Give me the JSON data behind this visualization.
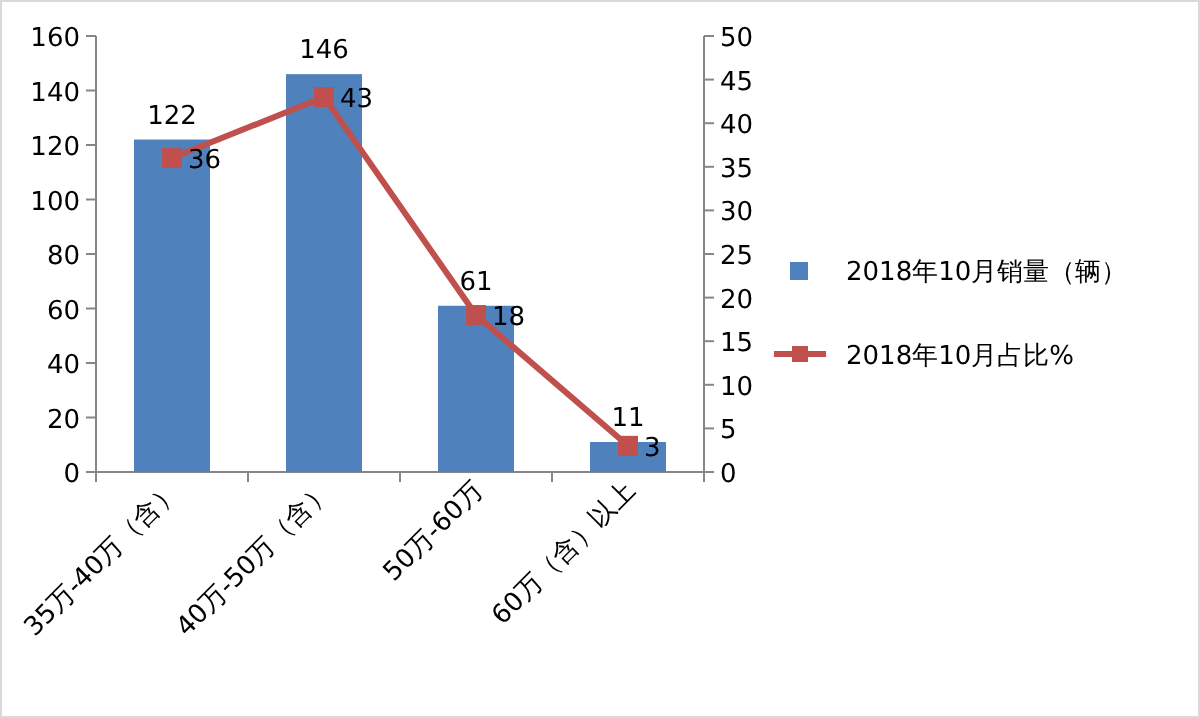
{
  "chart_data": {
    "type": "bar",
    "categories": [
      "35万-40万（含）",
      "40万-50万（含）",
      "50万-60万",
      "60万（含）以上"
    ],
    "series": [
      {
        "name": "2018年10月销量（辆）",
        "color": "#4f81bd",
        "values": [
          122,
          146,
          61,
          11
        ]
      },
      {
        "name": "2018年10月占比%",
        "type": "line",
        "axis": "y2",
        "color": "#c0504d",
        "marker": "square",
        "values": [
          36,
          43,
          18,
          3
        ]
      }
    ],
    "ylim": [
      0,
      160
    ],
    "yticks": [
      0,
      20,
      40,
      60,
      80,
      100,
      120,
      140,
      160
    ],
    "y2lim": [
      0,
      50
    ],
    "y2ticks": [
      0,
      5,
      10,
      15,
      20,
      25,
      30,
      35,
      40,
      45,
      50
    ],
    "data_labels": true,
    "legend": "right",
    "grid": false
  }
}
